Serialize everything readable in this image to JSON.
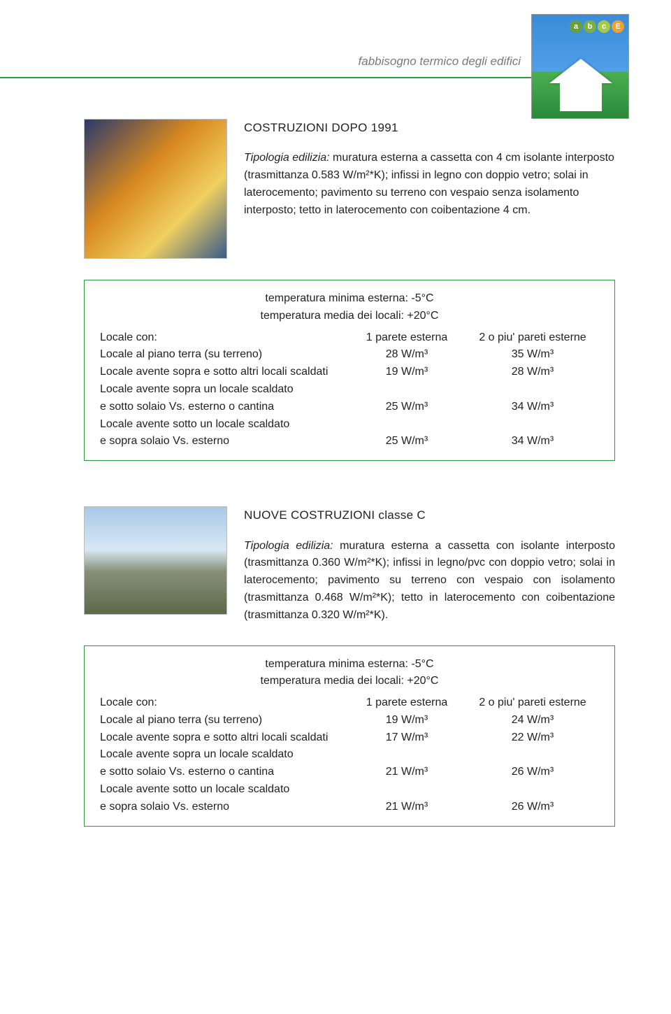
{
  "header": {
    "subtitle": "fabbisogno termico degli edifici",
    "rule_color": "#2a9a3f",
    "logo": {
      "sky_color": "#4fa0e8",
      "grass_color": "#2a8a3a",
      "balls": [
        {
          "color": "#6aa03a",
          "label": "a"
        },
        {
          "color": "#7db042",
          "label": "b"
        },
        {
          "color": "#a8c84a",
          "label": "c"
        },
        {
          "color": "#f0a030",
          "label": "E"
        }
      ]
    }
  },
  "section1": {
    "title": "COSTRUZIONI DOPO 1991",
    "body_prefix": "Tipologia edilizia:",
    "body": " muratura esterna a cassetta con 4 cm isolante interposto (trasmittanza 0.583 W/m²*K); infissi in legno con doppio vetro; solai in laterocemento; pavimento su terreno con vespaio senza isolamento interposto; tetto in laterocemento con coibentazione 4 cm.",
    "table": {
      "header1": "temperatura minima esterna: -5°C",
      "header2": "temperatura media dei locali: +20°C",
      "col_label": "Locale con:",
      "col_a": "1 parete esterna",
      "col_b": "2 o piu' pareti esterne",
      "rows": [
        {
          "label": "Locale al piano terra (su terreno)",
          "a": "28 W/m³",
          "b": "35 W/m³"
        },
        {
          "label": "Locale avente sopra e sotto altri locali scaldati",
          "a": "19 W/m³",
          "b": "28 W/m³"
        }
      ],
      "row3": {
        "line1": "Locale avente sopra un locale scaldato",
        "line2": "e sotto solaio Vs. esterno o cantina",
        "a": "25 W/m³",
        "b": "34 W/m³"
      },
      "row4": {
        "line1": "Locale avente sotto un locale scaldato",
        "line2": "e sopra solaio Vs. esterno",
        "a": "25 W/m³",
        "b": "34 W/m³"
      }
    }
  },
  "section2": {
    "title": "NUOVE COSTRUZIONI  classe C",
    "body_prefix": "Tipologia edilizia:",
    "body": " muratura esterna a cassetta con isolante interposto (trasmittanza 0.360 W/m²*K); infissi in legno/pvc con doppio vetro; solai in laterocemento; pavimento su terreno con vespaio con isolamento (trasmittanza 0.468 W/m²*K); tetto in laterocemento con coibentazione (trasmittanza 0.320 W/m²*K).",
    "table": {
      "header1": "temperatura minima esterna: -5°C",
      "header2": "temperatura media dei locali: +20°C",
      "col_label": "Locale con:",
      "col_a": "1 parete esterna",
      "col_b": "2 o piu' pareti esterne",
      "rows": [
        {
          "label": "Locale al piano terra (su terreno)",
          "a": "19 W/m³",
          "b": "24 W/m³"
        },
        {
          "label": "Locale avente sopra e sotto altri locali scaldati",
          "a": "17 W/m³",
          "b": "22 W/m³"
        }
      ],
      "row3": {
        "line1": "Locale avente sopra un locale scaldato",
        "line2": "e sotto solaio Vs. esterno o cantina",
        "a": "21 W/m³",
        "b": "26 W/m³"
      },
      "row4": {
        "line1": "Locale avente sotto un locale scaldato",
        "line2": "e sopra solaio Vs. esterno",
        "a": "21 W/m³",
        "b": "26 W/m³"
      }
    }
  },
  "colors": {
    "table_border": "#2a9a3f",
    "text": "#222222",
    "subtitle": "#7a7a7a"
  }
}
